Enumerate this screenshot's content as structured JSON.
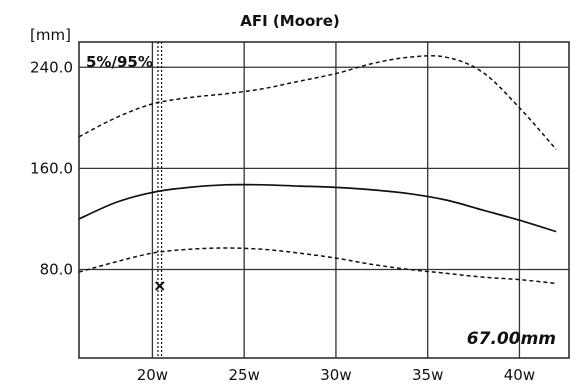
{
  "chart_data": {
    "type": "line",
    "title": "AFI (Moore)",
    "ylabel": "[mm]",
    "xlabel": "",
    "percentile_label": "5%/95%",
    "readout": "67.00mm",
    "x_ticks": [
      {
        "value": 20,
        "label": "20w"
      },
      {
        "value": 25,
        "label": "25w"
      },
      {
        "value": 30,
        "label": "30w"
      },
      {
        "value": 35,
        "label": "35w"
      },
      {
        "value": 40,
        "label": "40w"
      }
    ],
    "y_ticks": [
      {
        "value": 80,
        "label": "80.0"
      },
      {
        "value": 160,
        "label": "160.0"
      },
      {
        "value": 240,
        "label": "240.0"
      }
    ],
    "xlim": [
      16,
      42.7
    ],
    "ylim": [
      10,
      260
    ],
    "grid": true,
    "current": {
      "ga_weeks": 20.4,
      "value_mm": 67.0
    },
    "x": [
      16,
      18,
      20,
      22,
      24,
      26,
      28,
      30,
      32,
      34,
      36,
      38,
      40,
      42
    ],
    "series": [
      {
        "name": "5%/95%",
        "style": "dashed",
        "values": [
          185,
          200,
          211,
          216,
          219,
          223,
          229,
          235,
          243,
          248,
          248,
          236,
          208,
          175
        ]
      },
      {
        "name": "",
        "style": "solid",
        "values": [
          120,
          133,
          141,
          145,
          147,
          147,
          146,
          145,
          143,
          140,
          135,
          127,
          119,
          110
        ]
      },
      {
        "name": "5%/95%",
        "style": "dashed",
        "values": [
          78,
          86,
          93,
          96,
          97,
          96,
          93,
          89,
          84,
          80,
          77,
          74,
          72,
          69
        ]
      }
    ]
  }
}
